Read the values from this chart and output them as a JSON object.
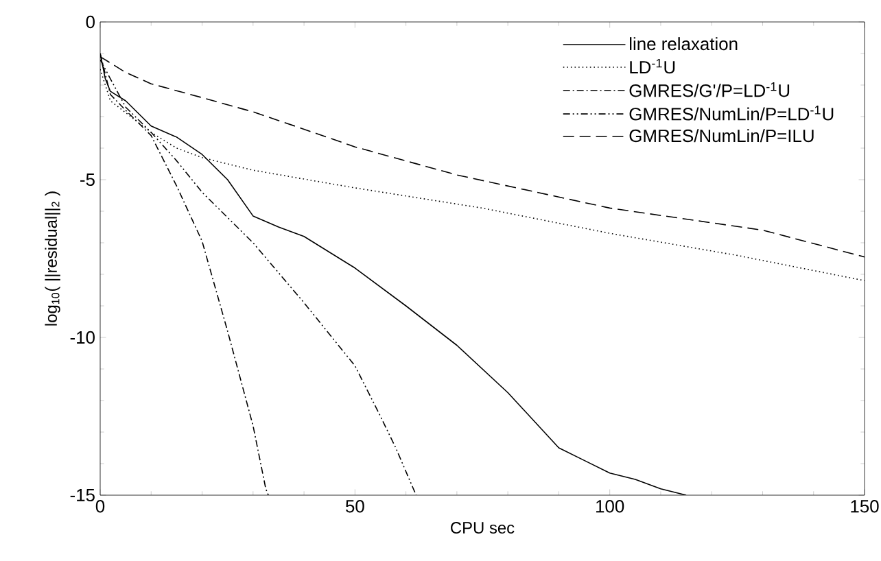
{
  "chart_data": {
    "type": "line",
    "xlabel": "CPU sec",
    "ylabel": "log$_{10}$( ||residual||$_{2}$ )",
    "xlim": [
      0,
      150
    ],
    "ylim": [
      -15,
      0
    ],
    "xticks": [
      0,
      50,
      100,
      150
    ],
    "yticks": [
      0,
      -5,
      -10,
      -15
    ],
    "grid": false,
    "legend": "top right",
    "marker": "none",
    "series": [
      {
        "name": "line relaxation",
        "color": "#000000",
        "line_style": "solid",
        "x": [
          0,
          1,
          2,
          5,
          10,
          15,
          20,
          25,
          30,
          35,
          40,
          50,
          60,
          70,
          80,
          90,
          95,
          100,
          105,
          110,
          115
        ],
        "values": [
          -1.0,
          -1.8,
          -2.2,
          -2.5,
          -3.3,
          -3.65,
          -4.2,
          -5.0,
          -6.15,
          -6.5,
          -6.8,
          -7.8,
          -9.0,
          -10.25,
          -11.75,
          -13.5,
          -13.9,
          -14.3,
          -14.5,
          -14.8,
          -15.0
        ]
      },
      {
        "name": "LD$^{-1}$U",
        "color": "#000000",
        "line_style": "dotted",
        "x": [
          0,
          2,
          10,
          15,
          20,
          30,
          50,
          75,
          100,
          125,
          150
        ],
        "values": [
          -1.5,
          -2.5,
          -3.5,
          -4.0,
          -4.3,
          -4.7,
          -5.26,
          -5.9,
          -6.7,
          -7.4,
          -8.2
        ]
      },
      {
        "name": "GMRES/G'/P=LD$^{-1}$U",
        "color": "#000000",
        "line_style": "dashdot",
        "x": [
          0,
          2,
          5,
          10,
          15,
          20,
          25,
          30,
          32.5,
          33
        ],
        "values": [
          -1.0,
          -2.3,
          -2.8,
          -3.6,
          -5.2,
          -6.95,
          -9.8,
          -12.8,
          -14.8,
          -15.0
        ]
      },
      {
        "name": "GMRES/NumLin/P=LD$^{-1}$U",
        "color": "#000000",
        "line_style": "dashdotdot",
        "x": [
          0,
          5,
          10,
          15,
          20,
          30,
          40,
          50,
          55,
          58,
          62
        ],
        "values": [
          -1.2,
          -2.7,
          -3.5,
          -4.4,
          -5.4,
          -7.0,
          -8.9,
          -10.9,
          -12.5,
          -13.5,
          -15.0
        ]
      },
      {
        "name": "GMRES/NumLin/P=ILU",
        "color": "#000000",
        "line_style": "dashed",
        "x": [
          0,
          5,
          10,
          20,
          30,
          40,
          50,
          70,
          100,
          130,
          150
        ],
        "values": [
          -1.1,
          -1.6,
          -1.96,
          -2.4,
          -2.85,
          -3.4,
          -3.96,
          -4.85,
          -5.9,
          -6.6,
          -7.45
        ]
      }
    ]
  }
}
